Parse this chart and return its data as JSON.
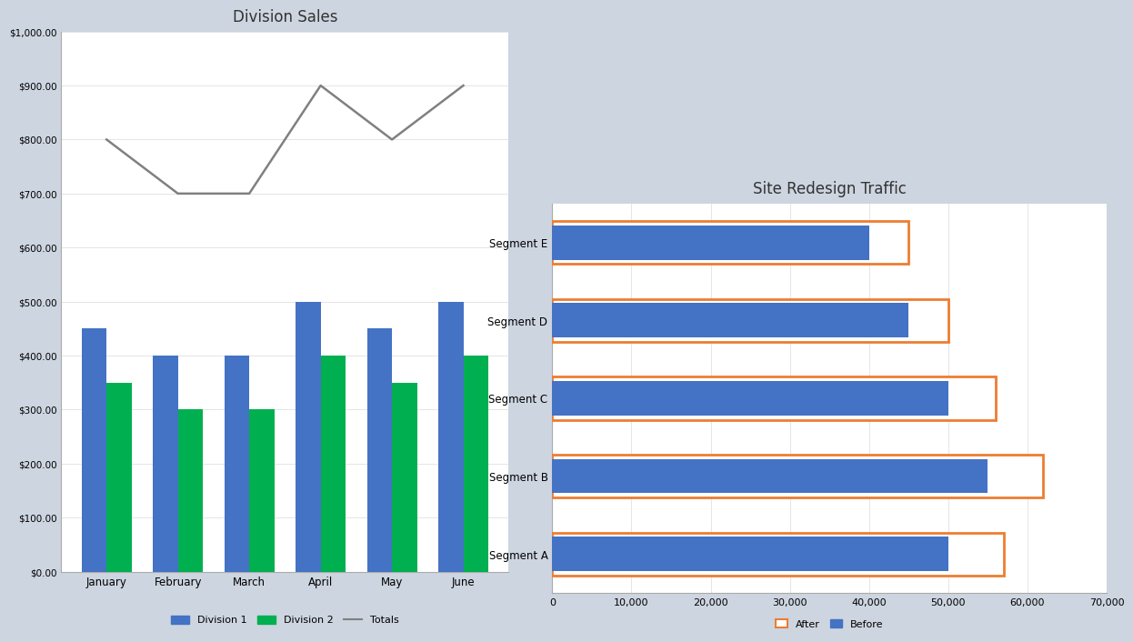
{
  "background_color": "#cdd5e0",
  "chart1": {
    "title": "Division Sales",
    "months": [
      "January",
      "February",
      "March",
      "April",
      "May",
      "June"
    ],
    "div1": [
      450,
      400,
      400,
      500,
      450,
      500
    ],
    "div2": [
      350,
      300,
      300,
      400,
      350,
      400
    ],
    "totals": [
      800,
      700,
      700,
      900,
      800,
      900
    ],
    "div1_color": "#4472c4",
    "div2_color": "#00b050",
    "totals_color": "#808080",
    "ylim": [
      0,
      1000
    ],
    "yticks": [
      0,
      100,
      200,
      300,
      400,
      500,
      600,
      700,
      800,
      900,
      1000
    ],
    "bg_color": "#ffffff",
    "border_color": "#aaaaaa",
    "grid_color": "#e0e0e0"
  },
  "chart2": {
    "title": "Site Redesign Traffic",
    "segments": [
      "Segment A",
      "Segment B",
      "Segment C",
      "Segment D",
      "Segment E"
    ],
    "before": [
      50000,
      55000,
      50000,
      45000,
      40000
    ],
    "after": [
      57000,
      62000,
      56000,
      50000,
      45000
    ],
    "before_color": "#4472c4",
    "after_color": "#ffffff",
    "after_edge_color": "#ed7d31",
    "xlim": [
      0,
      70000
    ],
    "xticks": [
      0,
      10000,
      20000,
      30000,
      40000,
      50000,
      60000,
      70000
    ],
    "bg_color": "#ffffff",
    "border_color": "#aaaaaa",
    "grid_color": "#e0e0e0"
  }
}
